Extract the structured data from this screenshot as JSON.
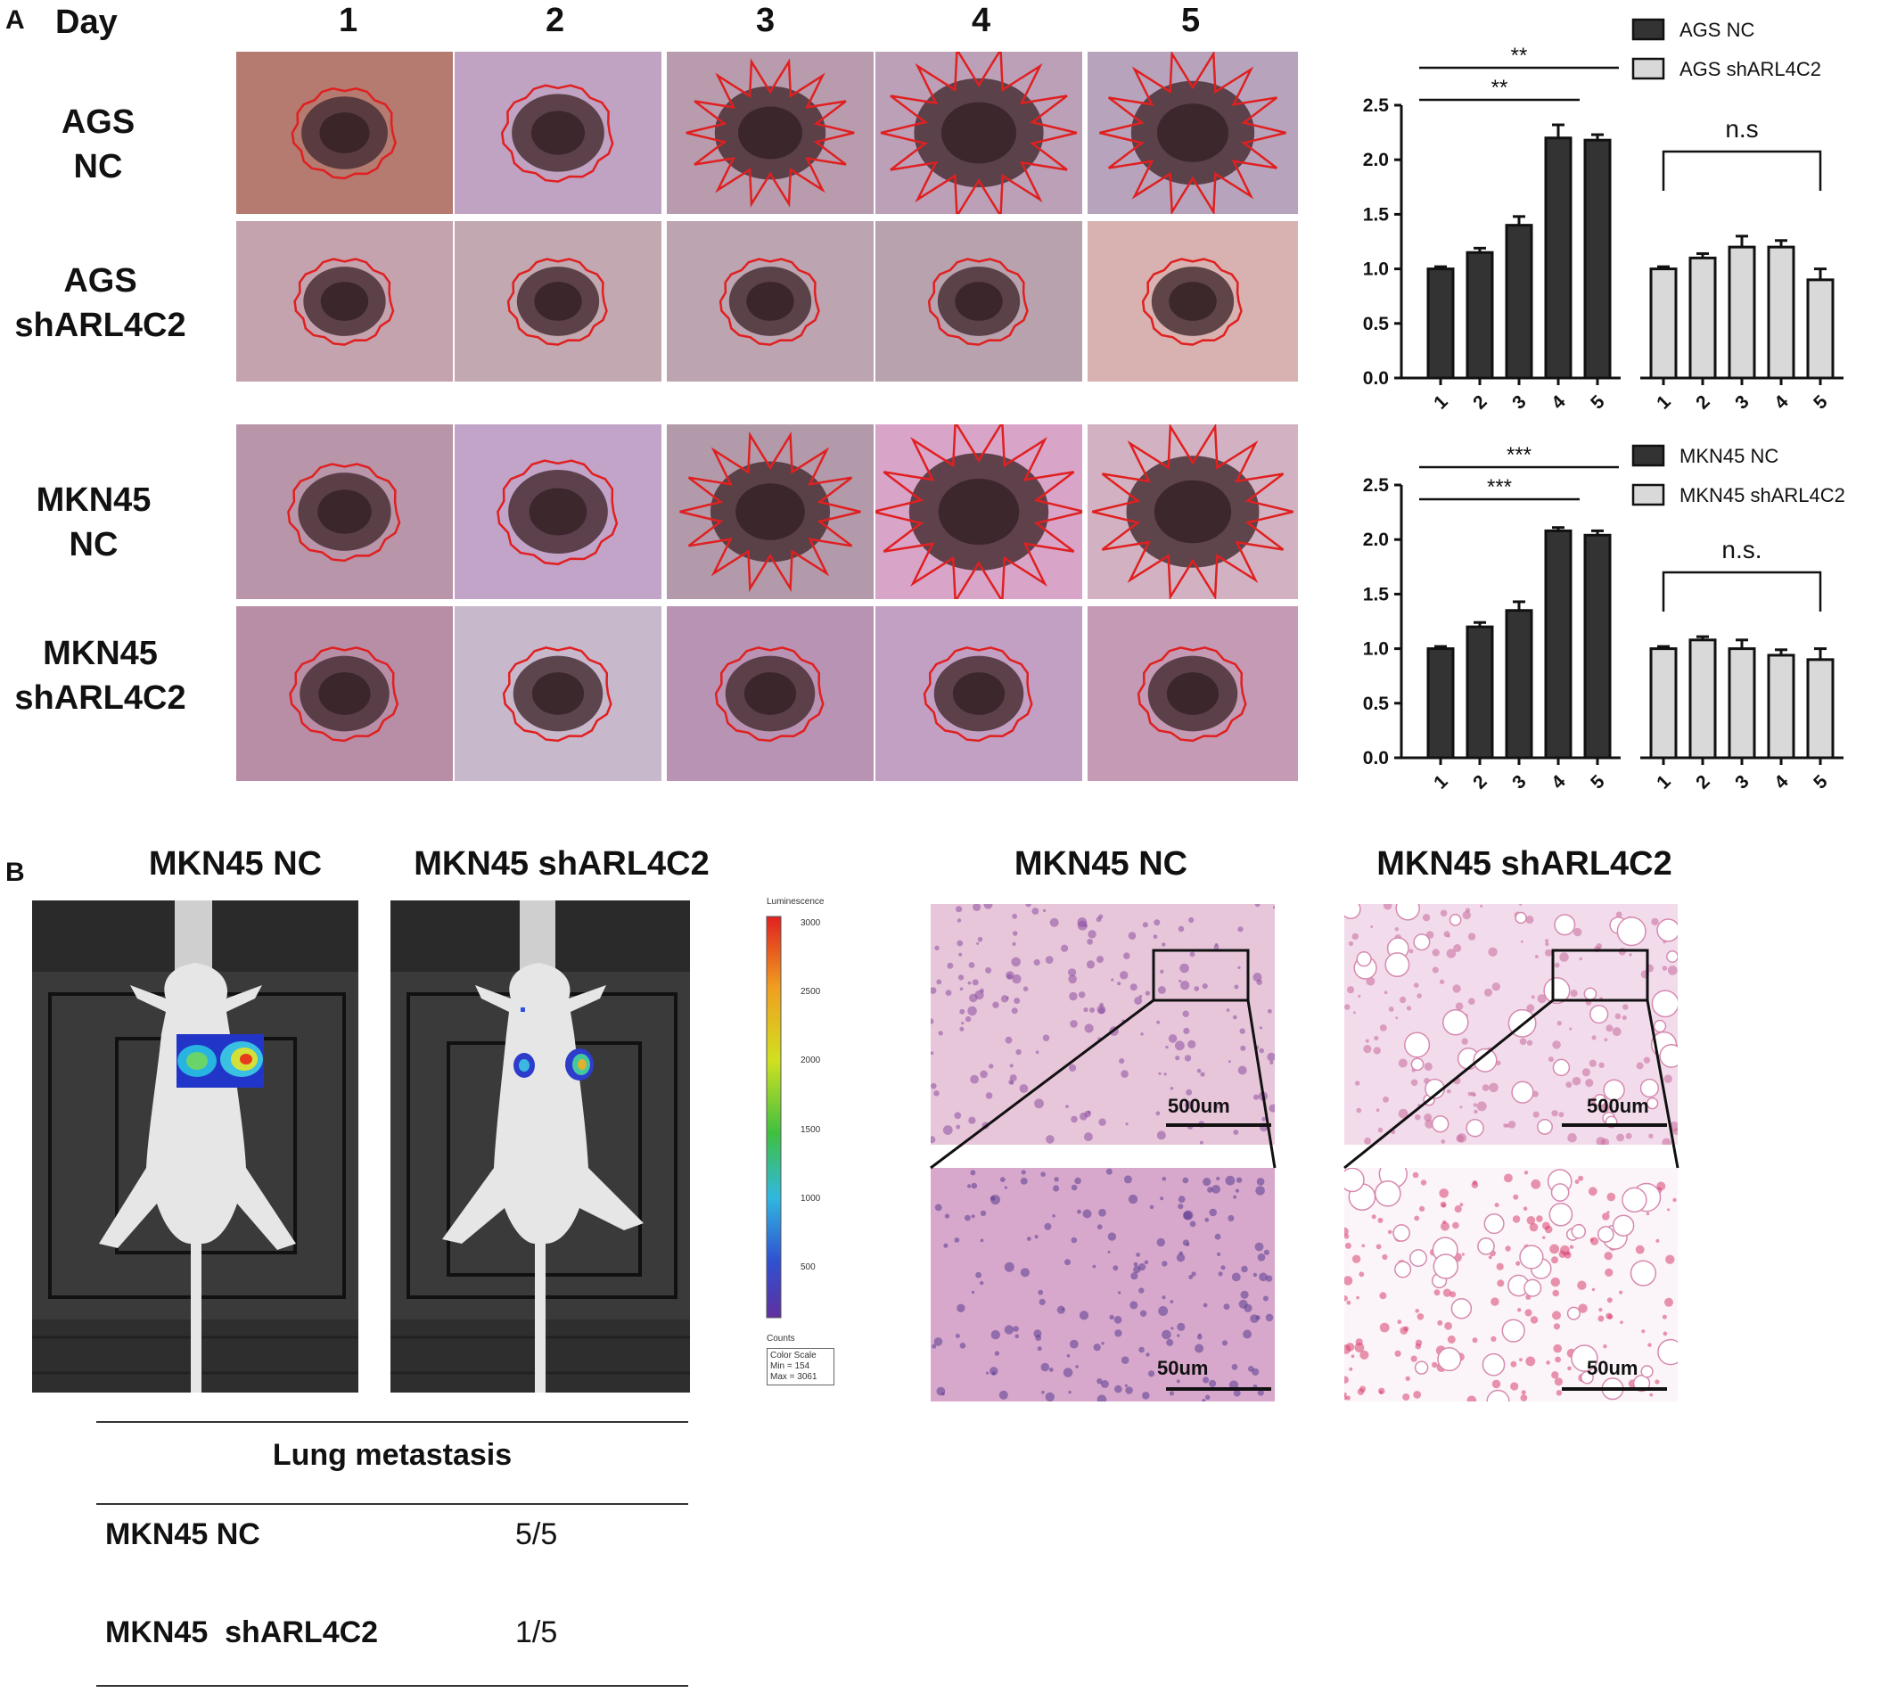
{
  "panel_a": {
    "letter": "A",
    "day_label": "Day",
    "days": [
      "1",
      "2",
      "3",
      "4",
      "5"
    ],
    "rows": [
      {
        "line1": "AGS",
        "line2": "NC"
      },
      {
        "line1": "AGS",
        "line2": "shARL4C2"
      },
      {
        "line1": "MKN45",
        "line2": "NC"
      },
      {
        "line1": "MKN45",
        "line2": "shARL4C2"
      }
    ]
  },
  "chart_data": [
    {
      "type": "bar",
      "categories": [
        "1",
        "2",
        "3",
        "4",
        "5"
      ],
      "ylim": [
        0,
        2.5
      ],
      "yticks": [
        "0.0",
        "0.5",
        "1.0",
        "1.5",
        "2.0",
        "2.5"
      ],
      "series": [
        {
          "name": "AGS NC",
          "values": [
            1.0,
            1.15,
            1.4,
            2.2,
            2.18
          ],
          "errors": [
            0.02,
            0.04,
            0.08,
            0.12,
            0.05
          ],
          "color": "#333333"
        },
        {
          "name": "AGS shARL4C2",
          "values": [
            1.0,
            1.1,
            1.2,
            1.2,
            0.9
          ],
          "errors": [
            0.02,
            0.04,
            0.1,
            0.06,
            0.1
          ],
          "color": "#d9d9d9"
        }
      ],
      "annotations": [
        {
          "text": "**",
          "from": "1",
          "to": "5"
        },
        {
          "text": "**",
          "from": "1",
          "to": "4"
        },
        {
          "text": "n.s",
          "from": "1",
          "to": "5",
          "series": "AGS shARL4C2"
        }
      ]
    },
    {
      "type": "bar",
      "categories": [
        "1",
        "2",
        "3",
        "4",
        "5"
      ],
      "ylim": [
        0,
        2.5
      ],
      "yticks": [
        "0.0",
        "0.5",
        "1.0",
        "1.5",
        "2.0",
        "2.5"
      ],
      "series": [
        {
          "name": "MKN45 NC",
          "values": [
            1.0,
            1.2,
            1.35,
            2.08,
            2.04
          ],
          "errors": [
            0.02,
            0.04,
            0.08,
            0.03,
            0.04
          ],
          "color": "#333333"
        },
        {
          "name": "MKN45 shARL4C2",
          "values": [
            1.0,
            1.08,
            1.0,
            0.94,
            0.9
          ],
          "errors": [
            0.02,
            0.03,
            0.08,
            0.05,
            0.1
          ],
          "color": "#d9d9d9"
        }
      ],
      "annotations": [
        {
          "text": "***",
          "from": "1",
          "to": "5"
        },
        {
          "text": "***",
          "from": "1",
          "to": "4"
        },
        {
          "text": "n.s.",
          "from": "1",
          "to": "5",
          "series": "MKN45 shARL4C2"
        }
      ]
    }
  ],
  "panel_b": {
    "letter": "B",
    "mouse_titles": [
      "MKN45 NC",
      "MKN45 shARL4C2"
    ],
    "luminescence": {
      "title": "Luminescence",
      "ticks": [
        "3000",
        "2500",
        "2000",
        "1500",
        "1000",
        "500"
      ],
      "units": "Counts",
      "box_line1": "Color Scale",
      "box_line2": "Min = 154",
      "box_line3": "Max = 3061"
    },
    "histology_titles": [
      "MKN45 NC",
      "MKN45 shARL4C2"
    ],
    "scale_top": "500um",
    "scale_bottom": "50um",
    "table": {
      "header": "Lung metastasis",
      "rows": [
        {
          "label": "MKN45 NC",
          "value": "5/5"
        },
        {
          "label": "MKN45  shARL4C2",
          "value": "1/5"
        }
      ]
    }
  }
}
